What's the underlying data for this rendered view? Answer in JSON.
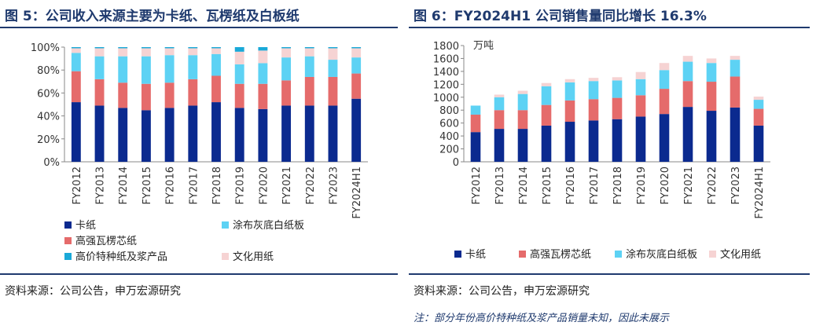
{
  "colors": {
    "navy": "#0b2a8f",
    "red": "#e56b6b",
    "cyan": "#5dd2f4",
    "pink": "#f6d3d3",
    "teal": "#1aa9d8",
    "title": "#1f3a6e",
    "axis": "#888888"
  },
  "left_panel": {
    "title": "图 5：公司收入来源主要为卡纸、瓦楞纸及白板纸",
    "source": "资料来源：公司公告，申万宏源研究"
  },
  "right_panel": {
    "title": "图 6：FY2024H1 公司销售量同比增长 16.3%",
    "source": "资料来源：公司公告，申万宏源研究",
    "note": "注：部分年份高价特种纸及浆产品销量未知，因此未展示"
  },
  "chart_data": [
    {
      "type": "bar",
      "stacked": true,
      "percent": true,
      "title": "公司收入来源主要为卡纸、瓦楞纸及白板纸",
      "categories": [
        "FY2012",
        "FY2013",
        "FY2014",
        "FY2015",
        "FY2016",
        "FY2017",
        "FY2018",
        "FY2019",
        "FY2020",
        "FY2021",
        "FY2022",
        "FY2023",
        "FY2024H1"
      ],
      "y_ticks": [
        "0%",
        "20%",
        "40%",
        "60%",
        "80%",
        "100%"
      ],
      "ylim": [
        0,
        100
      ],
      "legend_position": "bottom-left",
      "series": [
        {
          "name": "卡纸",
          "color_key": "navy",
          "values": [
            52,
            49,
            47,
            45,
            47,
            49,
            52,
            47,
            46,
            49,
            49,
            49,
            55
          ]
        },
        {
          "name": "高强瓦楞芯纸",
          "color_key": "red",
          "values": [
            27,
            23,
            22,
            23,
            22,
            23,
            23,
            21,
            22,
            22,
            25,
            25,
            22
          ]
        },
        {
          "name": "涂布灰底白纸板",
          "color_key": "cyan",
          "values": [
            16,
            20,
            23,
            24,
            24,
            21,
            19,
            17,
            18,
            20,
            18,
            15,
            14
          ]
        },
        {
          "name": "文化用纸",
          "color_key": "pink",
          "values": [
            4,
            7,
            7,
            7,
            6,
            6,
            5,
            11,
            11,
            8,
            7,
            10,
            8
          ]
        },
        {
          "name": "高价特种纸及浆产品",
          "color_key": "teal",
          "values": [
            1,
            1,
            1,
            1,
            1,
            1,
            1,
            4,
            3,
            1,
            1,
            1,
            1
          ]
        }
      ]
    },
    {
      "type": "bar",
      "stacked": true,
      "title": "FY2024H1 公司销售量同比增长 16.3%",
      "unit": "万吨",
      "categories": [
        "FY2012",
        "FY2013",
        "FY2014",
        "FY2015",
        "FY2016",
        "FY2017",
        "FY2018",
        "FY2019",
        "FY2020",
        "FY2021",
        "FY2022",
        "FY2023",
        "FY2024H1"
      ],
      "y_ticks": [
        "0",
        "200",
        "400",
        "600",
        "800",
        "1000",
        "1200",
        "1400",
        "1600",
        "1800"
      ],
      "ylim": [
        0,
        1800
      ],
      "legend_position": "bottom",
      "series": [
        {
          "name": "卡纸",
          "color_key": "navy",
          "values": [
            460,
            510,
            510,
            560,
            620,
            640,
            660,
            700,
            740,
            850,
            790,
            840,
            560
          ]
        },
        {
          "name": "高强瓦楞芯纸",
          "color_key": "red",
          "values": [
            270,
            290,
            290,
            320,
            330,
            330,
            330,
            330,
            390,
            400,
            450,
            480,
            260
          ]
        },
        {
          "name": "涂布灰底白纸板",
          "color_key": "cyan",
          "values": [
            140,
            200,
            250,
            290,
            280,
            280,
            270,
            250,
            290,
            300,
            290,
            260,
            140
          ]
        },
        {
          "name": "文化用纸",
          "color_key": "pink",
          "values": [
            0,
            40,
            50,
            50,
            50,
            50,
            50,
            110,
            110,
            90,
            70,
            60,
            50
          ]
        }
      ]
    }
  ]
}
